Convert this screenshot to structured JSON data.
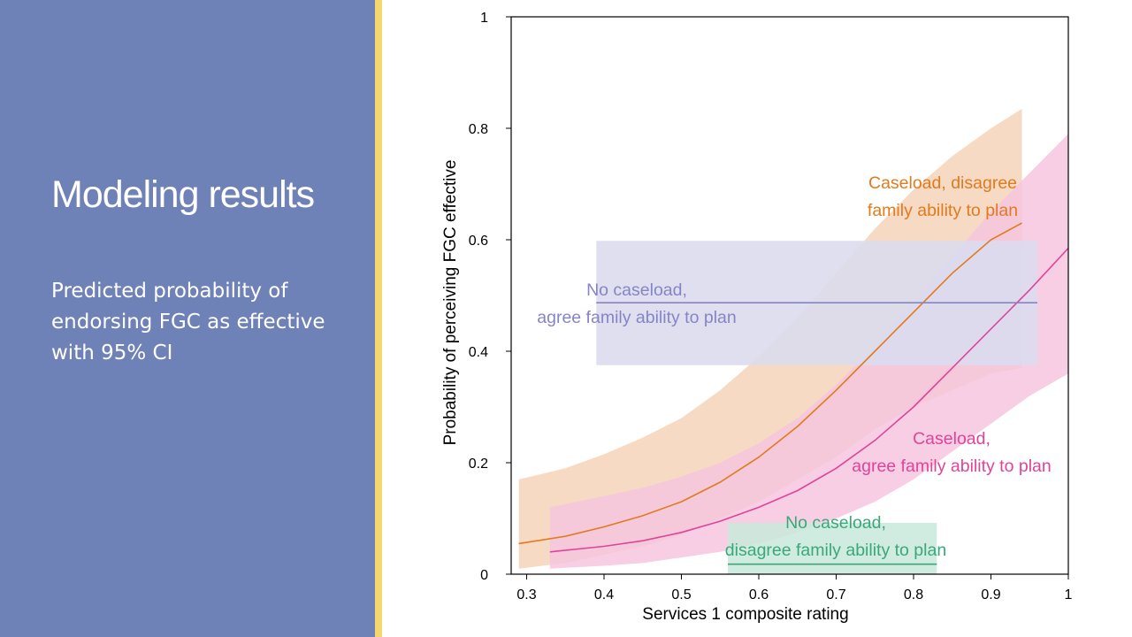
{
  "slide": {
    "title": "Modeling results",
    "subtitle": "Predicted probability of endorsing FGC as effective with 95% CI"
  },
  "colors": {
    "left_panel": "#6f82b8",
    "accent_bar": "#f5d76e",
    "orange": "#e07b1e",
    "pink": "#e0449a",
    "purple": "#8585c6",
    "green": "#3aa87a"
  },
  "chart_data": {
    "type": "line",
    "xlabel": "Services 1 composite rating",
    "ylabel": "Probability of perceiving FGC effective",
    "xlim": [
      0.28,
      1.0
    ],
    "ylim": [
      0,
      1
    ],
    "xticks": [
      0.3,
      0.4,
      0.5,
      0.6,
      0.7,
      0.8,
      0.9,
      1
    ],
    "xtick_labels": [
      "0.3",
      "0.4",
      "0.5",
      "0.6",
      "0.7",
      "0.8",
      "0.9",
      "1"
    ],
    "yticks": [
      0,
      0.2,
      0.4,
      0.6,
      0.8,
      1
    ],
    "ytick_labels": [
      "0",
      "0.2",
      "0.4",
      "0.6",
      "0.8",
      "1"
    ],
    "grid": false,
    "series": [
      {
        "name": "Caseload, disagree family ability to plan",
        "label_lines": [
          "Caseload, disagree",
          "family ability to plan"
        ],
        "color": "#e07b1e",
        "band_color": "#f6d4b8",
        "x": [
          0.29,
          0.35,
          0.4,
          0.45,
          0.5,
          0.55,
          0.6,
          0.65,
          0.7,
          0.75,
          0.8,
          0.85,
          0.9,
          0.94
        ],
        "y": [
          0.055,
          0.068,
          0.085,
          0.105,
          0.13,
          0.165,
          0.21,
          0.265,
          0.33,
          0.4,
          0.47,
          0.54,
          0.6,
          0.63
        ],
        "lower": [
          0.01,
          0.02,
          0.035,
          0.05,
          0.07,
          0.1,
          0.13,
          0.17,
          0.21,
          0.26,
          0.3,
          0.33,
          0.36,
          0.37
        ],
        "upper": [
          0.17,
          0.19,
          0.215,
          0.245,
          0.28,
          0.33,
          0.39,
          0.46,
          0.54,
          0.62,
          0.69,
          0.75,
          0.8,
          0.835
        ]
      },
      {
        "name": "Caseload, agree family ability to plan",
        "label_lines": [
          "Caseload,",
          "agree family ability to plan"
        ],
        "color": "#e0449a",
        "band_color": "#f6c6de",
        "x": [
          0.33,
          0.4,
          0.45,
          0.5,
          0.55,
          0.6,
          0.65,
          0.7,
          0.75,
          0.8,
          0.85,
          0.9,
          0.95,
          1.0
        ],
        "y": [
          0.04,
          0.05,
          0.06,
          0.075,
          0.095,
          0.12,
          0.15,
          0.19,
          0.24,
          0.3,
          0.37,
          0.44,
          0.51,
          0.585
        ],
        "lower": [
          0.01,
          0.015,
          0.02,
          0.03,
          0.04,
          0.055,
          0.075,
          0.1,
          0.13,
          0.17,
          0.22,
          0.27,
          0.32,
          0.36
        ],
        "upper": [
          0.12,
          0.14,
          0.155,
          0.175,
          0.2,
          0.235,
          0.28,
          0.34,
          0.41,
          0.49,
          0.57,
          0.65,
          0.72,
          0.79
        ]
      },
      {
        "name": "No caseload, agree family ability to plan",
        "label_lines": [
          "No caseload,",
          "agree family ability to plan"
        ],
        "color": "#8585c6",
        "band_color": "#dcdcee",
        "x": [
          0.39,
          0.96
        ],
        "y": [
          0.487,
          0.487
        ],
        "lower": [
          0.375,
          0.375
        ],
        "upper": [
          0.598,
          0.598
        ]
      },
      {
        "name": "No caseload, disagree family ability to plan",
        "label_lines": [
          "No caseload,",
          "disagree family ability to plan"
        ],
        "color": "#3aa87a",
        "band_color": "#cbe9dc",
        "x": [
          0.56,
          0.83
        ],
        "y": [
          0.018,
          0.018
        ],
        "lower": [
          0.0,
          0.0
        ],
        "upper": [
          0.092,
          0.092
        ]
      }
    ]
  }
}
